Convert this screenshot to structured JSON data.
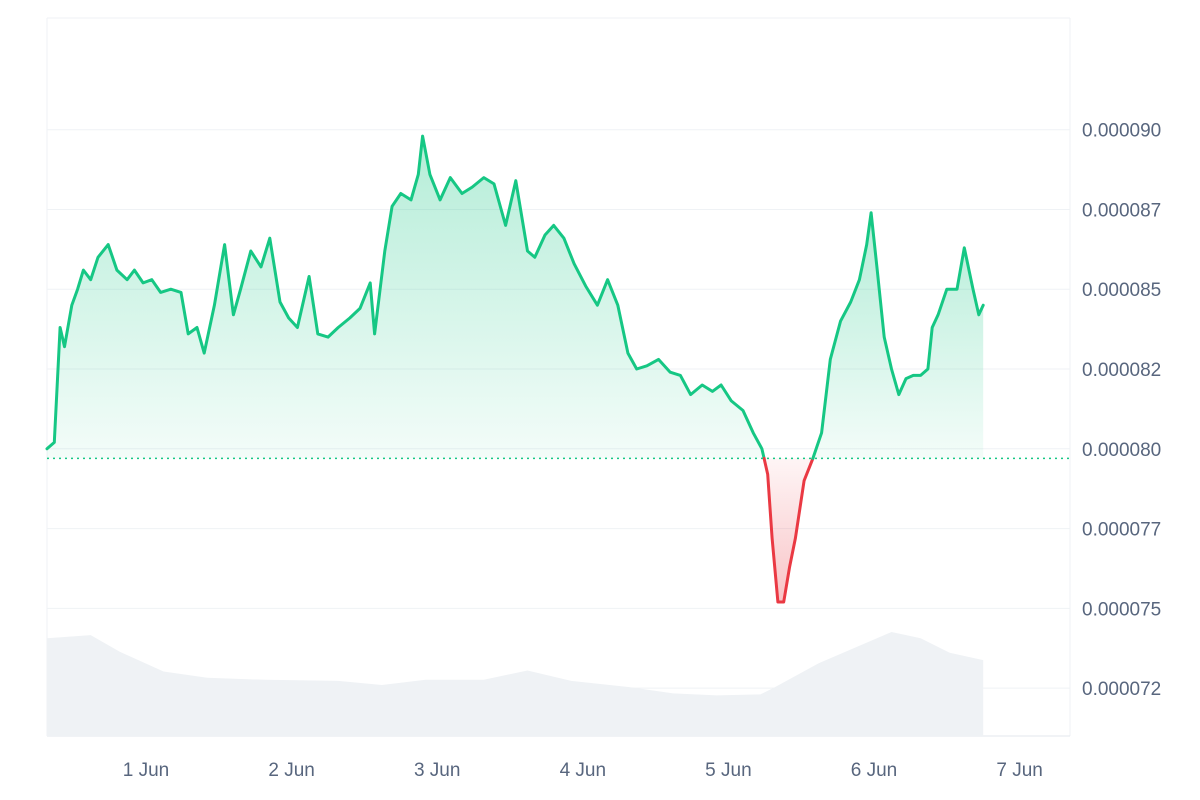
{
  "chart_data": {
    "type": "area",
    "title": "",
    "xlabel": "",
    "ylabel": "",
    "x_tick_labels": [
      "1 Jun",
      "2 Jun",
      "3 Jun",
      "4 Jun",
      "5 Jun",
      "6 Jun",
      "7 Jun"
    ],
    "y_tick_labels": [
      "0.000090",
      "0.000087",
      "0.000085",
      "0.000082",
      "0.000080",
      "0.000077",
      "0.000075",
      "0.000072"
    ],
    "y_tick_values": [
      9e-05,
      8.75e-05,
      8.5e-05,
      8.25e-05,
      8e-05,
      7.75e-05,
      7.5e-05,
      7.25e-05
    ],
    "ylim": [
      7.1e-05,
      9.35e-05
    ],
    "xlim_days": [
      0.0,
      7.0
    ],
    "baseline_value": 7.97e-05,
    "grid": "horizontal",
    "legend": "none",
    "colors": {
      "up_line": "#16c784",
      "down_line": "#ea3943",
      "up_fill": "#16c784",
      "down_fill": "#ea3943",
      "volume_fill": "#eff2f5",
      "baseline_dots": "#16c784",
      "grid": "#eff2f5",
      "tick_text": "#58667e"
    },
    "series": [
      {
        "points": [
          [
            0.0,
            8e-05
          ],
          [
            0.05,
            8.02e-05
          ],
          [
            0.09,
            8.38e-05
          ],
          [
            0.12,
            8.32e-05
          ],
          [
            0.17,
            8.45e-05
          ],
          [
            0.21,
            8.5e-05
          ],
          [
            0.25,
            8.56e-05
          ],
          [
            0.3,
            8.53e-05
          ],
          [
            0.35,
            8.6e-05
          ],
          [
            0.42,
            8.64e-05
          ],
          [
            0.48,
            8.56e-05
          ],
          [
            0.55,
            8.53e-05
          ],
          [
            0.6,
            8.56e-05
          ],
          [
            0.66,
            8.52e-05
          ],
          [
            0.72,
            8.53e-05
          ],
          [
            0.78,
            8.49e-05
          ],
          [
            0.85,
            8.5e-05
          ],
          [
            0.92,
            8.49e-05
          ],
          [
            0.97,
            8.36e-05
          ],
          [
            1.03,
            8.38e-05
          ],
          [
            1.08,
            8.3e-05
          ],
          [
            1.15,
            8.45e-05
          ],
          [
            1.22,
            8.64e-05
          ],
          [
            1.28,
            8.42e-05
          ],
          [
            1.33,
            8.5e-05
          ],
          [
            1.4,
            8.62e-05
          ],
          [
            1.47,
            8.57e-05
          ],
          [
            1.53,
            8.66e-05
          ],
          [
            1.6,
            8.46e-05
          ],
          [
            1.66,
            8.41e-05
          ],
          [
            1.72,
            8.38e-05
          ],
          [
            1.8,
            8.54e-05
          ],
          [
            1.86,
            8.36e-05
          ],
          [
            1.93,
            8.35e-05
          ],
          [
            2.0,
            8.38e-05
          ],
          [
            2.08,
            8.41e-05
          ],
          [
            2.15,
            8.44e-05
          ],
          [
            2.22,
            8.52e-05
          ],
          [
            2.25,
            8.36e-05
          ],
          [
            2.32,
            8.62e-05
          ],
          [
            2.37,
            8.76e-05
          ],
          [
            2.43,
            8.8e-05
          ],
          [
            2.5,
            8.78e-05
          ],
          [
            2.55,
            8.86e-05
          ],
          [
            2.58,
            8.98e-05
          ],
          [
            2.63,
            8.86e-05
          ],
          [
            2.7,
            8.78e-05
          ],
          [
            2.77,
            8.85e-05
          ],
          [
            2.85,
            8.8e-05
          ],
          [
            2.92,
            8.82e-05
          ],
          [
            3.0,
            8.85e-05
          ],
          [
            3.07,
            8.83e-05
          ],
          [
            3.15,
            8.7e-05
          ],
          [
            3.22,
            8.84e-05
          ],
          [
            3.3,
            8.62e-05
          ],
          [
            3.35,
            8.6e-05
          ],
          [
            3.42,
            8.67e-05
          ],
          [
            3.48,
            8.7e-05
          ],
          [
            3.55,
            8.66e-05
          ],
          [
            3.62,
            8.58e-05
          ],
          [
            3.7,
            8.51e-05
          ],
          [
            3.78,
            8.45e-05
          ],
          [
            3.85,
            8.53e-05
          ],
          [
            3.92,
            8.45e-05
          ],
          [
            3.99,
            8.3e-05
          ],
          [
            4.05,
            8.25e-05
          ],
          [
            4.12,
            8.26e-05
          ],
          [
            4.2,
            8.28e-05
          ],
          [
            4.28,
            8.24e-05
          ],
          [
            4.35,
            8.23e-05
          ],
          [
            4.42,
            8.17e-05
          ],
          [
            4.5,
            8.2e-05
          ],
          [
            4.57,
            8.18e-05
          ],
          [
            4.63,
            8.2e-05
          ],
          [
            4.7,
            8.15e-05
          ],
          [
            4.78,
            8.12e-05
          ],
          [
            4.85,
            8.05e-05
          ],
          [
            4.91,
            8e-05
          ],
          [
            4.95,
            7.92e-05
          ],
          [
            4.98,
            7.72e-05
          ],
          [
            5.02,
            7.52e-05
          ],
          [
            5.06,
            7.52e-05
          ],
          [
            5.1,
            7.63e-05
          ],
          [
            5.14,
            7.72e-05
          ],
          [
            5.2,
            7.9e-05
          ],
          [
            5.26,
            7.97e-05
          ],
          [
            5.32,
            8.05e-05
          ],
          [
            5.38,
            8.28e-05
          ],
          [
            5.45,
            8.4e-05
          ],
          [
            5.52,
            8.46e-05
          ],
          [
            5.58,
            8.53e-05
          ],
          [
            5.63,
            8.64e-05
          ],
          [
            5.66,
            8.74e-05
          ],
          [
            5.7,
            8.57e-05
          ],
          [
            5.75,
            8.35e-05
          ],
          [
            5.8,
            8.25e-05
          ],
          [
            5.85,
            8.17e-05
          ],
          [
            5.9,
            8.22e-05
          ],
          [
            5.95,
            8.23e-05
          ],
          [
            6.0,
            8.23e-05
          ],
          [
            6.05,
            8.25e-05
          ],
          [
            6.08,
            8.38e-05
          ],
          [
            6.12,
            8.42e-05
          ],
          [
            6.18,
            8.5e-05
          ],
          [
            6.25,
            8.5e-05
          ],
          [
            6.3,
            8.63e-05
          ],
          [
            6.36,
            8.5e-05
          ],
          [
            6.4,
            8.42e-05
          ],
          [
            6.43,
            8.45e-05
          ]
        ]
      }
    ],
    "volume": [
      [
        0.0,
        0.94
      ],
      [
        0.3,
        0.97
      ],
      [
        0.5,
        0.81
      ],
      [
        0.8,
        0.62
      ],
      [
        1.1,
        0.56
      ],
      [
        1.5,
        0.54
      ],
      [
        2.0,
        0.53
      ],
      [
        2.3,
        0.49
      ],
      [
        2.6,
        0.54
      ],
      [
        3.0,
        0.54
      ],
      [
        3.3,
        0.63
      ],
      [
        3.6,
        0.53
      ],
      [
        4.0,
        0.47
      ],
      [
        4.3,
        0.41
      ],
      [
        4.6,
        0.39
      ],
      [
        4.9,
        0.4
      ],
      [
        5.0,
        0.47
      ],
      [
        5.3,
        0.7
      ],
      [
        5.5,
        0.82
      ],
      [
        5.8,
        1.0
      ],
      [
        6.0,
        0.94
      ],
      [
        6.2,
        0.8
      ],
      [
        6.43,
        0.73
      ]
    ]
  }
}
